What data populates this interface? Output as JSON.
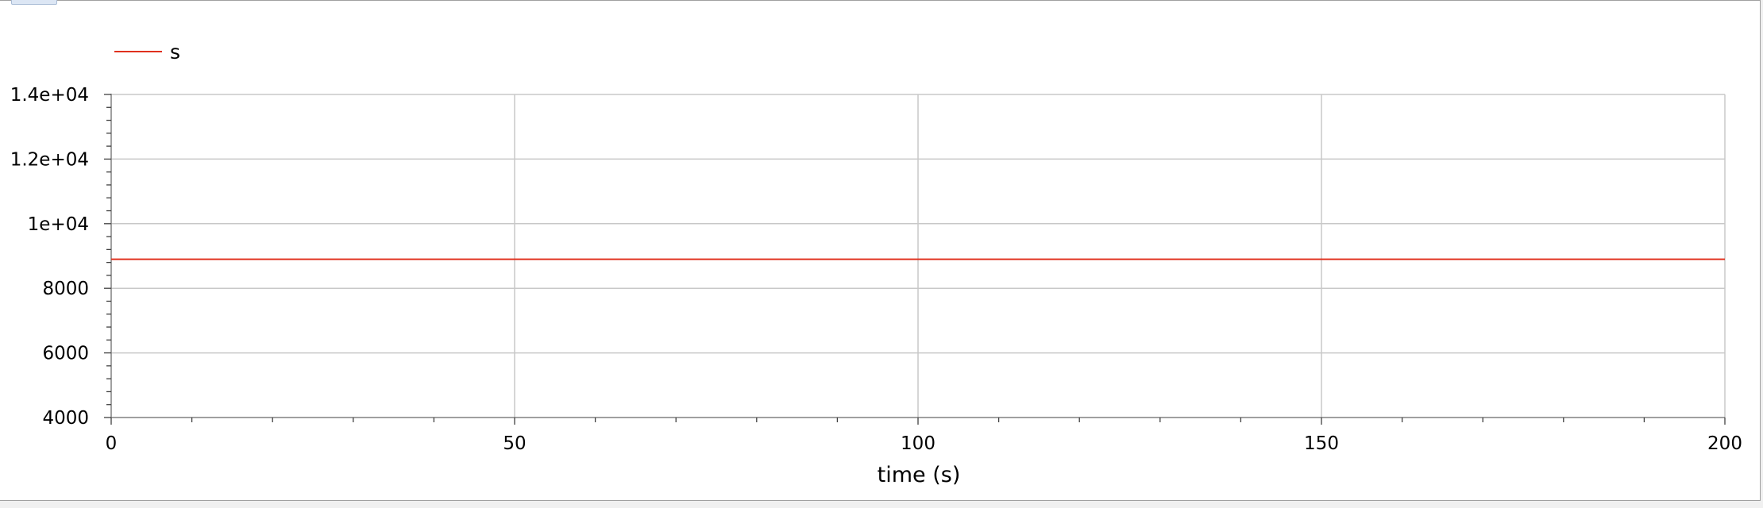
{
  "chart_data": {
    "type": "line",
    "title": "",
    "xlabel": "time (s)",
    "ylabel": "",
    "xlim": [
      0,
      200
    ],
    "ylim": [
      4000,
      14000
    ],
    "x_ticks": [
      0,
      50,
      100,
      150,
      200
    ],
    "x_tick_labels": [
      "0",
      "50",
      "100",
      "150",
      "200"
    ],
    "x_minor_step": 10,
    "y_ticks": [
      4000,
      6000,
      8000,
      10000,
      12000,
      14000
    ],
    "y_tick_labels": [
      "4000",
      "6000",
      "8000",
      "1e+04",
      "1.2e+04",
      "1.4e+04"
    ],
    "y_minor_step": 400,
    "grid": true,
    "legend_position": "top-left",
    "series": [
      {
        "name": "s",
        "color": "#e0301e",
        "x": [
          0,
          200
        ],
        "values": [
          8900,
          8900
        ]
      }
    ]
  }
}
